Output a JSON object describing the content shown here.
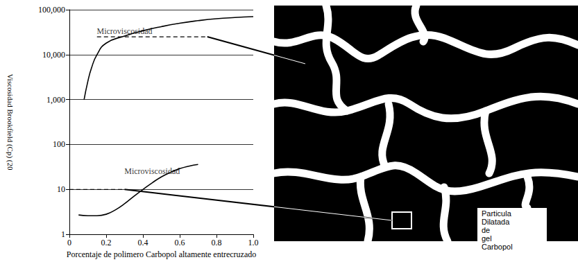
{
  "chart_data": {
    "type": "line",
    "x_label": "Porcentaje de polimero Carbopol altamente entrecruzado",
    "y_label": "Viscosidad Brookfield (Cp) (20",
    "log": "y",
    "grid": true,
    "xlim": [
      0,
      1
    ],
    "xticks": [
      0,
      0.2,
      0.4,
      0.6,
      0.8,
      {
        "value": 1,
        "label": "1.0"
      }
    ],
    "ylim": [
      1,
      100000
    ],
    "yticks": [
      1,
      10,
      100,
      {
        "value": 1000,
        "label": "1,000"
      },
      {
        "value": 10000,
        "label": "10,000"
      },
      {
        "value": 100000,
        "label": "100,000"
      }
    ],
    "series": [
      {
        "color": "#000000",
        "x": [
          0.08,
          0.1,
          0.12,
          0.15,
          0.2,
          0.3,
          0.4,
          0.5,
          0.6,
          0.7,
          0.8,
          0.9,
          1.0
        ],
        "values": [
          1000,
          2500,
          5000,
          10000,
          18000,
          26000,
          34000,
          42000,
          50000,
          57000,
          63000,
          67000,
          70000
        ]
      },
      {
        "color": "#000000",
        "x": [
          0.05,
          0.1,
          0.15,
          0.2,
          0.25,
          0.3,
          0.35,
          0.4,
          0.45,
          0.5,
          0.55,
          0.6,
          0.65,
          0.7
        ],
        "values": [
          2.7,
          2.6,
          2.6,
          2.8,
          3.5,
          4.8,
          7,
          10,
          14,
          19,
          24,
          29,
          33,
          36
        ]
      }
    ],
    "reference_lines": [
      {
        "y": 25000,
        "x": [
          0.15,
          0.75
        ],
        "line_style": "dashed"
      },
      {
        "y": 10,
        "x": [
          0,
          0.3
        ],
        "line_style": "dashed"
      }
    ],
    "annotations": [
      {
        "text": "Microviscosidad",
        "x": 0.3,
        "y": 33000
      },
      {
        "text": "Microviscosidad",
        "x": 0.45,
        "y": 25
      }
    ]
  },
  "diagram": {
    "label_lines": [
      "Particula",
      "Dilatada",
      "de",
      "gel",
      "Carbopol"
    ]
  }
}
